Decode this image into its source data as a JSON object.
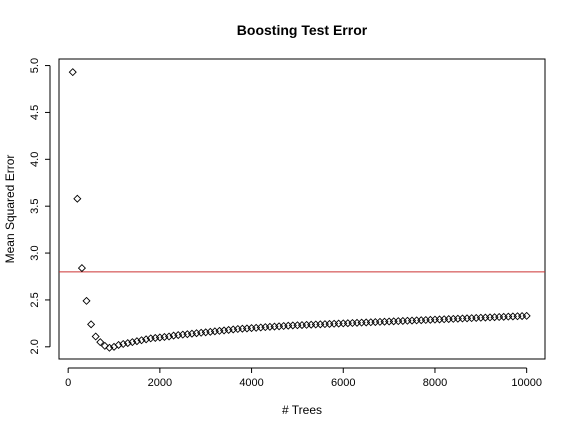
{
  "chart_data": {
    "type": "scatter",
    "title": "Boosting Test Error",
    "xlabel": "# Trees",
    "ylabel": "Mean Squared Error",
    "xlim": [
      -200,
      10400
    ],
    "ylim": [
      1.87,
      5.07
    ],
    "xticks": [
      "0",
      "2000",
      "4000",
      "6000",
      "8000",
      "10000"
    ],
    "yticks": [
      "2.0",
      "2.5",
      "3.0",
      "3.5",
      "4.0",
      "4.5",
      "5.0"
    ],
    "grid": false,
    "marker": "diamond-open",
    "colors": {
      "points": "#000000",
      "hline": "#cc3333",
      "frame": "#000000"
    },
    "hline": {
      "y": 2.8,
      "label": ""
    },
    "series": [
      {
        "x": [
          100,
          200,
          300,
          400,
          500,
          600,
          700,
          800,
          900,
          1000,
          1100,
          1200,
          1300,
          1400,
          1500,
          1600,
          1700,
          1800,
          1900,
          2000,
          2100,
          2200,
          2300,
          2400,
          2500,
          2600,
          2700,
          2800,
          2900,
          3000,
          3100,
          3200,
          3300,
          3400,
          3500,
          3600,
          3700,
          3800,
          3900,
          4000,
          4100,
          4200,
          4300,
          4400,
          4500,
          4600,
          4700,
          4800,
          4900,
          5000,
          5100,
          5200,
          5300,
          5400,
          5500,
          5600,
          5700,
          5800,
          5900,
          6000,
          6100,
          6200,
          6300,
          6400,
          6500,
          6600,
          6700,
          6800,
          6900,
          7000,
          7100,
          7200,
          7300,
          7400,
          7500,
          7600,
          7700,
          7800,
          7900,
          8000,
          8100,
          8200,
          8300,
          8400,
          8500,
          8600,
          8700,
          8800,
          8900,
          9000,
          9100,
          9200,
          9300,
          9400,
          9500,
          9600,
          9700,
          9800,
          9900,
          10000
        ],
        "values": [
          4.93,
          3.58,
          2.84,
          2.49,
          2.24,
          2.11,
          2.05,
          2.01,
          1.99,
          2.0,
          2.02,
          2.03,
          2.04,
          2.05,
          2.06,
          2.07,
          2.08,
          2.09,
          2.095,
          2.1,
          2.105,
          2.11,
          2.12,
          2.125,
          2.13,
          2.135,
          2.14,
          2.145,
          2.15,
          2.155,
          2.16,
          2.165,
          2.17,
          2.175,
          2.18,
          2.185,
          2.19,
          2.193,
          2.196,
          2.2,
          2.203,
          2.206,
          2.21,
          2.213,
          2.216,
          2.219,
          2.222,
          2.225,
          2.228,
          2.23,
          2.232,
          2.234,
          2.236,
          2.238,
          2.24,
          2.242,
          2.244,
          2.246,
          2.248,
          2.25,
          2.252,
          2.254,
          2.256,
          2.258,
          2.26,
          2.262,
          2.264,
          2.266,
          2.268,
          2.27,
          2.272,
          2.274,
          2.276,
          2.278,
          2.28,
          2.282,
          2.284,
          2.286,
          2.288,
          2.29,
          2.292,
          2.294,
          2.296,
          2.298,
          2.3,
          2.302,
          2.304,
          2.306,
          2.308,
          2.31,
          2.312,
          2.314,
          2.316,
          2.318,
          2.32,
          2.322,
          2.324,
          2.326,
          2.328,
          2.33
        ]
      }
    ]
  }
}
